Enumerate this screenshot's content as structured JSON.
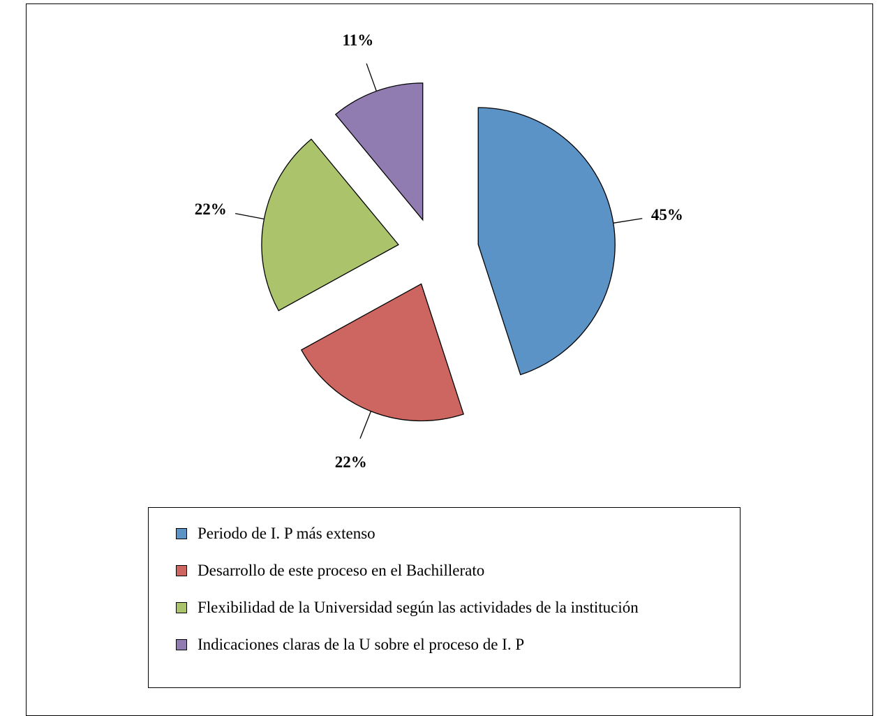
{
  "chart_data": {
    "type": "pie",
    "exploded": true,
    "labels": [
      "Periodo de I. P más extenso",
      "Desarrollo de este proceso en el Bachillerato",
      "Flexibilidad de la Universidad según las actividades de la institución",
      "Indicaciones claras de la U sobre el proceso de I. P"
    ],
    "values": [
      45,
      22,
      22,
      11
    ],
    "data_labels": [
      "45%",
      "22%",
      "22%",
      "11%"
    ],
    "colors": [
      "#5B93C7",
      "#CD6660",
      "#ABC46B",
      "#917CB1"
    ],
    "legend_position": "bottom"
  }
}
